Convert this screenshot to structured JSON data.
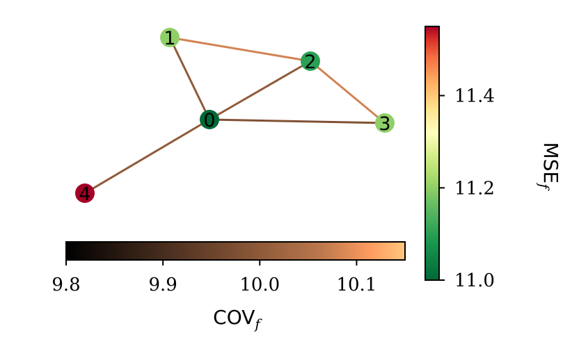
{
  "graph": {
    "nodes": [
      {
        "id": "0",
        "label": "0",
        "mse": 11.0
      },
      {
        "id": "1",
        "label": "1",
        "mse": 11.2
      },
      {
        "id": "2",
        "label": "2",
        "mse": 11.1
      },
      {
        "id": "3",
        "label": "3",
        "mse": 11.2
      },
      {
        "id": "4",
        "label": "4",
        "mse": 11.55
      }
    ],
    "edges": [
      {
        "source": "0",
        "target": "1",
        "cov": 10.0
      },
      {
        "source": "0",
        "target": "2",
        "cov": 10.0
      },
      {
        "source": "0",
        "target": "3",
        "cov": 9.98
      },
      {
        "source": "0",
        "target": "4",
        "cov": 10.0
      },
      {
        "source": "1",
        "target": "2",
        "cov": 10.08
      },
      {
        "source": "2",
        "target": "3",
        "cov": 10.08
      }
    ]
  },
  "colorbar_mse": {
    "label": "MSE",
    "label_sub": "f",
    "ticks": [
      "11.0",
      "11.2",
      "11.4"
    ],
    "range": [
      11.0,
      11.55
    ],
    "colormap": "RdYlGn_r"
  },
  "colorbar_cov": {
    "label": "COV",
    "label_sub": "f",
    "ticks": [
      "9.8",
      "9.9",
      "10.0",
      "10.1"
    ],
    "range": [
      9.8,
      10.15
    ],
    "colormap": "copper"
  }
}
